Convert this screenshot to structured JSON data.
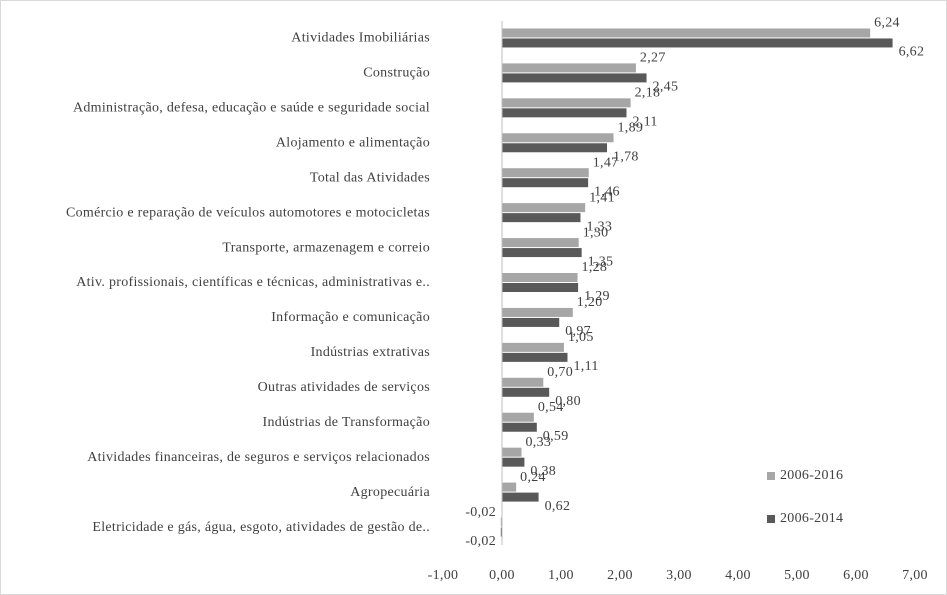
{
  "chart_data": {
    "type": "bar",
    "orientation": "horizontal",
    "categories": [
      "Atividades Imobiliárias",
      "Construção",
      "Administração, defesa, educação e saúde e seguridade social",
      "Alojamento e alimentação",
      "Total das Atividades",
      "Comércio e reparação de veículos automotores e motocicletas",
      "Transporte, armazenagem e correio",
      "Ativ. profissionais, científicas e técnicas, administrativas e..",
      "Informação e comunicação",
      "Indústrias extrativas",
      "Outras atividades de serviços",
      "Indústrias de Transformação",
      "Atividades financeiras, de seguros e serviços relacionados",
      "Agropecuária",
      "Eletricidade e gás, água, esgoto, atividades de gestão de.."
    ],
    "series": [
      {
        "name": "2006-2016",
        "color": "#a6a6a6",
        "values": [
          6.24,
          2.27,
          2.18,
          1.89,
          1.47,
          1.41,
          1.3,
          1.28,
          1.2,
          1.05,
          0.7,
          0.54,
          0.33,
          0.24,
          -0.02
        ],
        "value_labels": [
          "6,24",
          "2,27",
          "2,18",
          "1,89",
          "1,47",
          "1,41",
          "1,30",
          "1,28",
          "1,20",
          "1,05",
          "0,70",
          "0,54",
          "0,33",
          "0,24",
          "-0,02"
        ]
      },
      {
        "name": "2006-2014",
        "color": "#595959",
        "values": [
          6.62,
          2.45,
          2.11,
          1.78,
          1.46,
          1.33,
          1.35,
          1.29,
          0.97,
          1.11,
          0.8,
          0.59,
          0.38,
          0.62,
          -0.02
        ],
        "value_labels": [
          "6,62",
          "2,45",
          "2,11",
          "1,78",
          "1,46",
          "1,33",
          "1,35",
          "1,29",
          "0,97",
          "1,11",
          "0,80",
          "0,59",
          "0,38",
          "0,62",
          "-0,02"
        ]
      }
    ],
    "xlim": [
      -1,
      7
    ],
    "xticks": [
      {
        "value": -1,
        "label": "-1,00"
      },
      {
        "value": 0,
        "label": "0,00"
      },
      {
        "value": 1,
        "label": "1,00"
      },
      {
        "value": 2,
        "label": "2,00"
      },
      {
        "value": 3,
        "label": "3,00"
      },
      {
        "value": 4,
        "label": "4,00"
      },
      {
        "value": 5,
        "label": "5,00"
      },
      {
        "value": 6,
        "label": "6,00"
      },
      {
        "value": 7,
        "label": "7,00"
      }
    ],
    "grid": false,
    "legend": "lower right"
  }
}
